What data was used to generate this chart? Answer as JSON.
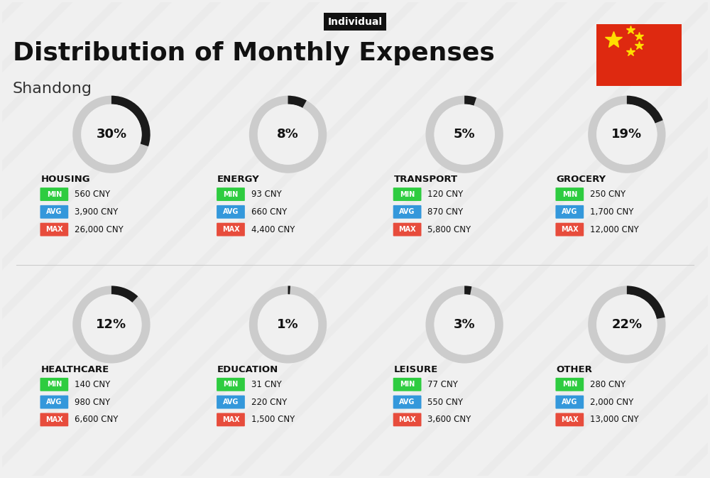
{
  "title": "Distribution of Monthly Expenses",
  "subtitle": "Shandong",
  "tag": "Individual",
  "bg_color": "#f0f0f0",
  "categories": [
    {
      "name": "HOUSING",
      "pct": 30,
      "min_val": "560 CNY",
      "avg_val": "3,900 CNY",
      "max_val": "26,000 CNY",
      "col": 0,
      "row": 0
    },
    {
      "name": "ENERGY",
      "pct": 8,
      "min_val": "93 CNY",
      "avg_val": "660 CNY",
      "max_val": "4,400 CNY",
      "col": 1,
      "row": 0
    },
    {
      "name": "TRANSPORT",
      "pct": 5,
      "min_val": "120 CNY",
      "avg_val": "870 CNY",
      "max_val": "5,800 CNY",
      "col": 2,
      "row": 0
    },
    {
      "name": "GROCERY",
      "pct": 19,
      "min_val": "250 CNY",
      "avg_val": "1,700 CNY",
      "max_val": "12,000 CNY",
      "col": 3,
      "row": 0
    },
    {
      "name": "HEALTHCARE",
      "pct": 12,
      "min_val": "140 CNY",
      "avg_val": "980 CNY",
      "max_val": "6,600 CNY",
      "col": 0,
      "row": 1
    },
    {
      "name": "EDUCATION",
      "pct": 1,
      "min_val": "31 CNY",
      "avg_val": "220 CNY",
      "max_val": "1,500 CNY",
      "col": 1,
      "row": 1
    },
    {
      "name": "LEISURE",
      "pct": 3,
      "min_val": "77 CNY",
      "avg_val": "550 CNY",
      "max_val": "3,600 CNY",
      "col": 2,
      "row": 1
    },
    {
      "name": "OTHER",
      "pct": 22,
      "min_val": "280 CNY",
      "avg_val": "2,000 CNY",
      "max_val": "13,000 CNY",
      "col": 3,
      "row": 1
    }
  ],
  "min_color": "#2ecc40",
  "avg_color": "#3498db",
  "max_color": "#e74c3c",
  "label_color": "#ffffff",
  "donut_active": "#1a1a1a",
  "donut_inactive": "#cccccc",
  "cat_name_color": "#111111",
  "value_color": "#222222"
}
